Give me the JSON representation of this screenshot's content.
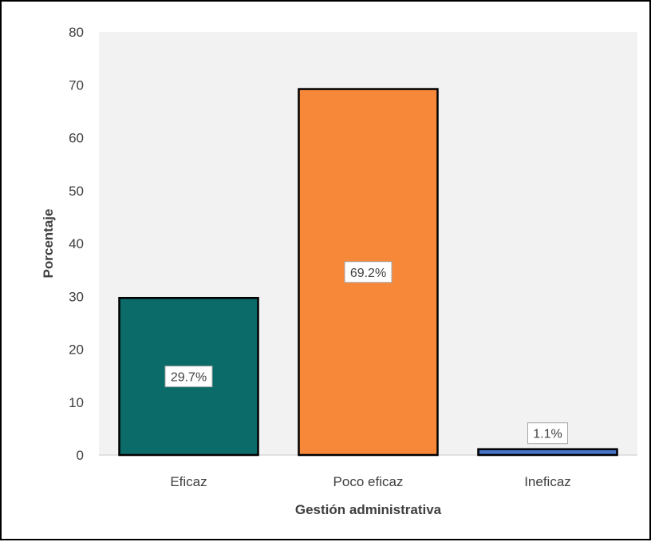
{
  "chart_data": {
    "type": "bar",
    "categories": [
      "Eficaz",
      "Poco eficaz",
      "Ineficaz"
    ],
    "values": [
      29.7,
      69.2,
      1.1
    ],
    "data_labels": [
      "29.7%",
      "69.2%",
      "1.1%"
    ],
    "colors": [
      "#0b6b68",
      "#f7883a",
      "#4472c4"
    ],
    "xlabel": "Gestión administrativa",
    "ylabel": "Porcentaje",
    "ylim": [
      0,
      80
    ],
    "yticks": [
      0,
      10,
      20,
      30,
      40,
      50,
      60,
      70,
      80
    ],
    "plot_background": "#f2f2f2",
    "grid": false,
    "legend": "none"
  }
}
